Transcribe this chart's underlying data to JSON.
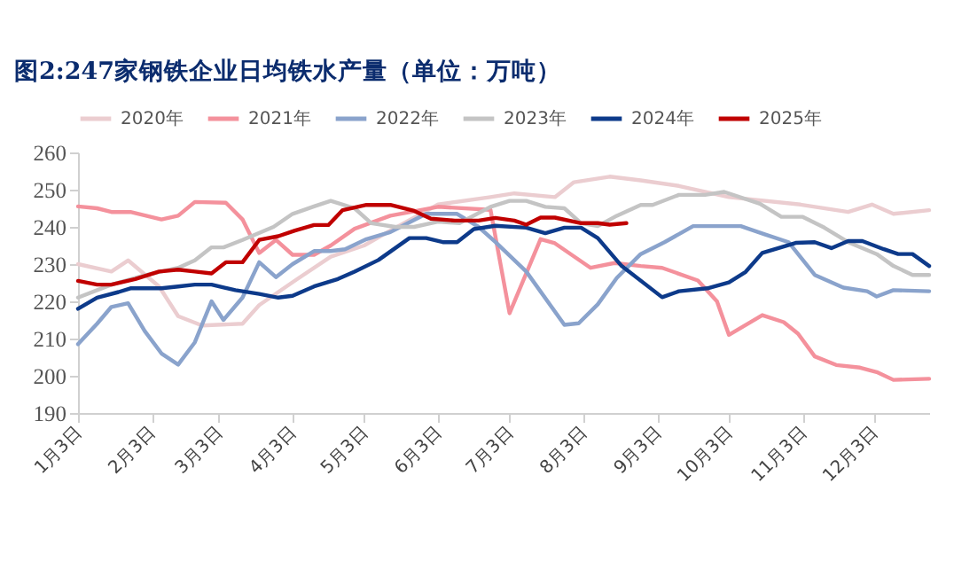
{
  "chart_data": {
    "type": "line",
    "title": "图2:247家钢铁企业日均铁水产量（单位：万吨）",
    "legend": "top",
    "grid": false,
    "marker": "none",
    "line_style": "solid",
    "xlim": [
      "--01-03",
      "--12-26"
    ],
    "xticks": [
      {
        "value": "--01-03",
        "label": "1月3日"
      },
      {
        "value": "--02-03",
        "label": "2月3日"
      },
      {
        "value": "--03-03",
        "label": "3月3日"
      },
      {
        "value": "--04-03",
        "label": "4月3日"
      },
      {
        "value": "--05-03",
        "label": "5月3日"
      },
      {
        "value": "--06-03",
        "label": "6月3日"
      },
      {
        "value": "--07-03",
        "label": "7月3日"
      },
      {
        "value": "--08-03",
        "label": "8月3日"
      },
      {
        "value": "--09-03",
        "label": "9月3日"
      },
      {
        "value": "--10-03",
        "label": "10月3日"
      },
      {
        "value": "--11-03",
        "label": "11月3日"
      },
      {
        "value": "--12-03",
        "label": "12月3日"
      }
    ],
    "ylim": [
      190,
      260
    ],
    "yticks": [
      190,
      200,
      210,
      220,
      230,
      240,
      250,
      260
    ],
    "series": [
      {
        "name": "2020年",
        "color": "#ebcdd0",
        "x": [
          "--01-03",
          "--01-17",
          "--01-24",
          "--02-06",
          "--02-14",
          "--02-24",
          "--03-13",
          "--03-20",
          "--04-05",
          "--04-19",
          "--05-03",
          "--05-14",
          "--06-03",
          "--06-25",
          "--07-05",
          "--07-22",
          "--07-30",
          "--08-14",
          "--08-27",
          "--09-12",
          "--10-03",
          "--11-02",
          "--11-22",
          "--12-02",
          "--12-11",
          "--12-26"
        ],
        "values": [
          230,
          228,
          231,
          224,
          216,
          213.5,
          214,
          219,
          226,
          232,
          235,
          239,
          246,
          248,
          249,
          248,
          252,
          253.5,
          252.5,
          251,
          248,
          246,
          244,
          246,
          243.5,
          244.5
        ]
      },
      {
        "name": "2021年",
        "color": "#f4919c",
        "x": [
          "--01-03",
          "--01-11",
          "--01-17",
          "--01-25",
          "--02-07",
          "--02-14",
          "--02-21",
          "--03-06",
          "--03-13",
          "--03-20",
          "--03-27",
          "--04-03",
          "--04-12",
          "--04-19",
          "--04-29",
          "--05-14",
          "--06-03",
          "--06-25",
          "--07-03",
          "--07-16",
          "--07-22",
          "--08-06",
          "--08-16",
          "--08-27",
          "--09-05",
          "--09-20",
          "--09-28",
          "--10-03",
          "--10-17",
          "--10-26",
          "--11-01",
          "--11-08",
          "--11-17",
          "--11-27",
          "--12-04",
          "--12-11",
          "--12-26"
        ],
        "values": [
          245.5,
          245,
          244,
          244,
          242,
          243,
          246.7,
          246.5,
          242,
          233,
          236.5,
          232.5,
          232.5,
          235,
          239.5,
          243,
          245.4,
          244.6,
          216.8,
          236.7,
          235.6,
          229,
          230.3,
          229.5,
          229,
          225.6,
          220,
          211,
          216.3,
          214.4,
          211.3,
          205.2,
          202.9,
          202.2,
          201,
          198.9,
          199.2
        ]
      },
      {
        "name": "2022年",
        "color": "#8aa3cc",
        "x": [
          "--01-03",
          "--01-11",
          "--01-17",
          "--01-24",
          "--01-31",
          "--02-07",
          "--02-14",
          "--02-21",
          "--02-28",
          "--03-05",
          "--03-13",
          "--03-20",
          "--03-27",
          "--04-03",
          "--04-12",
          "--04-19",
          "--04-25",
          "--05-04",
          "--05-14",
          "--05-29",
          "--06-11",
          "--06-20",
          "--06-27",
          "--07-10",
          "--07-26",
          "--08-01",
          "--08-09",
          "--08-17",
          "--08-27",
          "--09-06",
          "--09-18",
          "--10-08",
          "--10-18",
          "--10-28",
          "--11-08",
          "--11-20",
          "--11-30",
          "--12-04",
          "--12-11",
          "--12-26"
        ],
        "values": [
          208.5,
          214,
          218.5,
          219.5,
          212,
          206,
          203,
          209,
          220,
          215,
          221,
          230.5,
          226.5,
          230,
          233.5,
          233.5,
          234,
          236.7,
          238.6,
          243.5,
          243.5,
          240,
          236,
          228,
          213.7,
          214.1,
          219.2,
          226.3,
          232.7,
          235.9,
          240.2,
          240.2,
          238,
          235.9,
          227.1,
          223.7,
          222.7,
          221.3,
          223,
          222.7
        ]
      },
      {
        "name": "2023年",
        "color": "#c4c4c4",
        "x": [
          "--01-03",
          "--01-17",
          "--01-31",
          "--02-14",
          "--02-21",
          "--02-28",
          "--03-05",
          "--03-13",
          "--03-26",
          "--04-03",
          "--04-12",
          "--04-19",
          "--04-29",
          "--05-06",
          "--05-16",
          "--05-24",
          "--06-03",
          "--06-12",
          "--06-25",
          "--07-03",
          "--07-10",
          "--07-18",
          "--07-26",
          "--08-02",
          "--08-09",
          "--08-17",
          "--08-27",
          "--09-01",
          "--09-12",
          "--09-23",
          "--10-01",
          "--10-16",
          "--10-25",
          "--11-03",
          "--11-12",
          "--11-22",
          "--12-04",
          "--12-11",
          "--12-19",
          "--12-26"
        ],
        "values": [
          221,
          224.5,
          227,
          229,
          231,
          234.5,
          234.5,
          236.5,
          240,
          243.5,
          245.5,
          247,
          245,
          241,
          240,
          240,
          241.4,
          241,
          245.4,
          247,
          247,
          245.4,
          245,
          241,
          240.2,
          243,
          245.9,
          245.9,
          248.6,
          248.6,
          249.4,
          246.2,
          242.7,
          242.7,
          239.8,
          235.9,
          232.7,
          229.5,
          227.1,
          227.1
        ]
      },
      {
        "name": "2024年",
        "color": "#0d3a8a",
        "x": [
          "--01-03",
          "--01-11",
          "--01-20",
          "--01-25",
          "--02-07",
          "--02-14",
          "--02-21",
          "--02-28",
          "--03-10",
          "--03-20",
          "--03-28",
          "--04-03",
          "--04-12",
          "--04-22",
          "--04-29",
          "--05-09",
          "--05-22",
          "--05-29",
          "--06-05",
          "--06-11",
          "--06-18",
          "--06-27",
          "--07-10",
          "--07-18",
          "--07-26",
          "--08-02",
          "--08-09",
          "--08-19",
          "--09-05",
          "--09-12",
          "--09-24",
          "--10-03",
          "--10-10",
          "--10-17",
          "--10-31",
          "--11-08",
          "--11-15",
          "--11-22",
          "--11-28",
          "--12-07",
          "--12-13",
          "--12-19",
          "--12-26"
        ],
        "values": [
          218,
          221,
          222.5,
          223.5,
          223.5,
          224,
          224.5,
          224.5,
          223,
          222,
          221,
          221.5,
          224,
          226,
          228,
          231.1,
          237,
          237,
          235.9,
          235.9,
          239.4,
          240.3,
          239.8,
          238.3,
          239.8,
          239.8,
          237,
          229.5,
          221.1,
          222.7,
          223.5,
          225.1,
          227.9,
          233,
          235.7,
          235.9,
          234.3,
          236.2,
          236.2,
          234,
          232.7,
          232.7,
          229.5
        ]
      },
      {
        "name": "2025年",
        "color": "#c00000",
        "x": [
          "--01-03",
          "--01-11",
          "--01-17",
          "--01-27",
          "--02-06",
          "--02-14",
          "--02-21",
          "--02-28",
          "--03-06",
          "--03-13",
          "--03-20",
          "--03-28",
          "--04-04",
          "--04-12",
          "--04-18",
          "--04-24",
          "--05-04",
          "--05-14",
          "--05-24",
          "--05-31",
          "--06-10",
          "--06-20",
          "--06-27",
          "--07-05",
          "--07-10",
          "--07-16",
          "--07-22",
          "--08-02",
          "--08-09",
          "--08-14",
          "--08-21"
        ],
        "values": [
          225.5,
          224.5,
          224.5,
          226,
          228,
          228.5,
          228,
          227.5,
          230.5,
          230.5,
          236.5,
          237.5,
          239,
          240.5,
          240.5,
          244.5,
          245.9,
          245.9,
          244.3,
          242.2,
          241.7,
          241.7,
          242.4,
          241.7,
          240.6,
          242.5,
          242.5,
          241,
          241,
          240.6,
          241
        ]
      }
    ]
  }
}
